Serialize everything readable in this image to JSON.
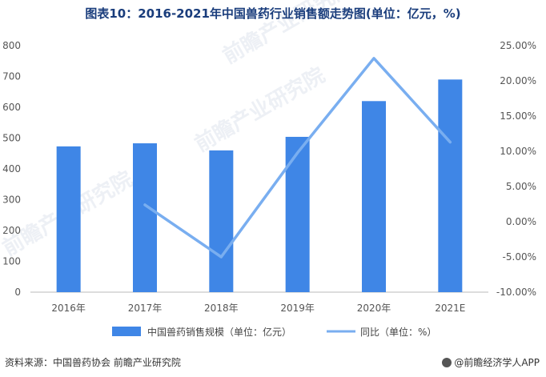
{
  "chart_data": {
    "type": "bar",
    "title": "图表10：2016-2021年中国兽药行业销售额走势图(单位：亿元，%)",
    "categories": [
      "2016年",
      "2017年",
      "2018年",
      "2019年",
      "2020年",
      "2021E"
    ],
    "series": [
      {
        "name": "中国兽药销售规模（单位：亿元）",
        "type": "bar",
        "axis": "left",
        "color": "#3f86e6",
        "values": [
          473,
          483,
          460,
          504,
          620,
          690
        ]
      },
      {
        "name": "同比（单位：%）",
        "type": "line",
        "axis": "right",
        "color": "#79aef0",
        "values": [
          null,
          2.4,
          -5.0,
          9.8,
          23.2,
          11.3
        ]
      }
    ],
    "y_left": {
      "min": 0,
      "max": 800,
      "ticks": [
        "0",
        "100",
        "200",
        "300",
        "400",
        "500",
        "600",
        "700",
        "800"
      ]
    },
    "y_right": {
      "min": -10,
      "max": 25,
      "ticks": [
        "-10.00%",
        "-5.00%",
        "0.00%",
        "5.00%",
        "10.00%",
        "15.00%",
        "20.00%",
        "25.00%"
      ]
    },
    "legend_position": "bottom",
    "grid": false
  },
  "footer": {
    "source": "资料来源：中国兽药协会 前瞻产业研究院",
    "brand": "@前瞻经济学人APP",
    "brand_icon": "brand-logo-icon"
  },
  "watermarks": [
    "前瞻产业研究院",
    "前瞻产业研究院",
    "前瞻产业研究院"
  ]
}
